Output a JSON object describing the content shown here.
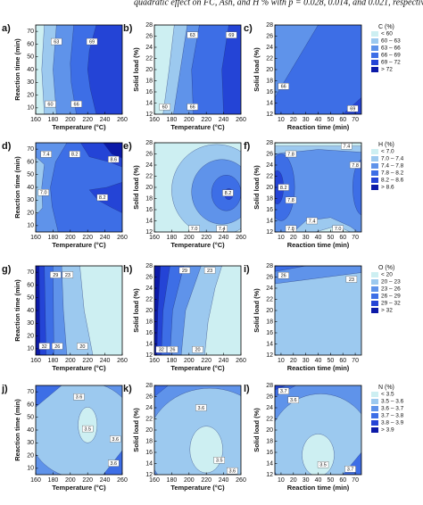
{
  "caption": "quadratic effect on FC, Ash, and H % with p = 0.028, 0.014, and 0.021, respectively.",
  "chart_data": [
    {
      "type": "contour",
      "panel": "a)",
      "xlabel": "Temperature (°C)",
      "ylabel": "Reaction time (min)",
      "xlim": [
        160,
        260
      ],
      "xticks": [
        160,
        180,
        200,
        220,
        240,
        260
      ],
      "ylim": [
        5,
        75
      ],
      "yticks": [
        10,
        20,
        30,
        40,
        50,
        60,
        70
      ],
      "contour_labels": [
        "63",
        "69",
        "60",
        "66"
      ]
    },
    {
      "type": "contour",
      "panel": "b)",
      "xlabel": "Temperature (°C)",
      "ylabel": "Solid load (%)",
      "xlim": [
        160,
        260
      ],
      "xticks": [
        160,
        180,
        200,
        220,
        240,
        260
      ],
      "ylim": [
        12,
        28
      ],
      "yticks": [
        12,
        14,
        16,
        18,
        20,
        22,
        24,
        26,
        28
      ],
      "contour_labels": [
        "63",
        "69",
        "60",
        "66"
      ]
    },
    {
      "type": "contour",
      "panel": "c)",
      "xlabel": "Reaction time (min)",
      "ylabel": "Solid load (%)",
      "xlim": [
        5,
        75
      ],
      "xticks": [
        10,
        20,
        30,
        40,
        50,
        60,
        70
      ],
      "ylim": [
        12,
        28
      ],
      "yticks": [
        12,
        14,
        16,
        18,
        20,
        22,
        24,
        26,
        28
      ],
      "contour_labels": [
        "66",
        "69"
      ],
      "legend": {
        "title": "C (%)",
        "entries": [
          "< 60",
          "60 – 63",
          "63 – 66",
          "66 – 69",
          "69 – 72",
          "> 72"
        ],
        "colors": [
          "#cdeff2",
          "#9cc9ef",
          "#5f93ea",
          "#3d6ee6",
          "#2444d6",
          "#0c1aa8"
        ]
      }
    },
    {
      "type": "contour",
      "panel": "d)",
      "xlabel": "Temperature (°C)",
      "ylabel": "Reaction time (min)",
      "xlim": [
        160,
        260
      ],
      "xticks": [
        160,
        180,
        200,
        220,
        240,
        260
      ],
      "ylim": [
        5,
        75
      ],
      "yticks": [
        10,
        20,
        30,
        40,
        50,
        60,
        70
      ],
      "contour_labels": [
        "7.4",
        "8.2",
        "8.6",
        "7.0",
        "8.2"
      ]
    },
    {
      "type": "contour",
      "panel": "e)",
      "xlabel": "Temperature (°C)",
      "ylabel": "Solid load (%)",
      "xlim": [
        160,
        260
      ],
      "xticks": [
        160,
        180,
        200,
        220,
        240,
        260
      ],
      "ylim": [
        12,
        28
      ],
      "yticks": [
        12,
        14,
        16,
        18,
        20,
        22,
        24,
        26,
        28
      ],
      "contour_labels": [
        "8.2",
        "7.0",
        "7.4"
      ]
    },
    {
      "type": "contour",
      "panel": "f)",
      "xlabel": "Reaction time (min)",
      "ylabel": "Solid load (%)",
      "xlim": [
        5,
        75
      ],
      "xticks": [
        10,
        20,
        30,
        40,
        50,
        60,
        70
      ],
      "ylim": [
        12,
        28
      ],
      "yticks": [
        12,
        14,
        16,
        18,
        20,
        22,
        24,
        26,
        28
      ],
      "contour_labels": [
        "7.4",
        "7.8",
        "7.8",
        "8.2",
        "7.8",
        "7.4",
        "7.8",
        "7.0"
      ],
      "legend": {
        "title": "H (%)",
        "entries": [
          "< 7.0",
          "7.0 – 7.4",
          "7.4 – 7.8",
          "7.8 – 8.2",
          "8.2 – 8.6",
          "> 8.6"
        ],
        "colors": [
          "#cdeff2",
          "#9cc9ef",
          "#5f93ea",
          "#3d6ee6",
          "#2444d6",
          "#0c1aa8"
        ]
      }
    },
    {
      "type": "contour",
      "panel": "g)",
      "xlabel": "Temperature (°C)",
      "ylabel": "Reaction time (min)",
      "xlim": [
        160,
        260
      ],
      "xticks": [
        160,
        180,
        200,
        220,
        240,
        260
      ],
      "ylim": [
        5,
        75
      ],
      "yticks": [
        10,
        20,
        30,
        40,
        50,
        60,
        70
      ],
      "contour_labels": [
        "29",
        "23",
        "32",
        "26",
        "20"
      ]
    },
    {
      "type": "contour",
      "panel": "h)",
      "xlabel": "Temperature (°C)",
      "ylabel": "Solid load (%)",
      "xlim": [
        160,
        260
      ],
      "xticks": [
        160,
        180,
        200,
        220,
        240,
        260
      ],
      "ylim": [
        12,
        28
      ],
      "yticks": [
        12,
        14,
        16,
        18,
        20,
        22,
        24,
        26,
        28
      ],
      "contour_labels": [
        "29",
        "23",
        "32",
        "26",
        "20"
      ]
    },
    {
      "type": "contour",
      "panel": "i)",
      "xlabel": "Reaction time (min)",
      "ylabel": "Solid load (%)",
      "xlim": [
        5,
        75
      ],
      "xticks": [
        10,
        20,
        30,
        40,
        50,
        60,
        70
      ],
      "ylim": [
        12,
        28
      ],
      "yticks": [
        12,
        14,
        16,
        18,
        20,
        22,
        24,
        26,
        28
      ],
      "contour_labels": [
        "26",
        "23"
      ],
      "legend": {
        "title": "O (%)",
        "entries": [
          "< 20",
          "20 – 23",
          "23 – 26",
          "26 – 29",
          "29 – 32",
          "> 32"
        ],
        "colors": [
          "#cdeff2",
          "#9cc9ef",
          "#5f93ea",
          "#3d6ee6",
          "#2444d6",
          "#0c1aa8"
        ]
      }
    },
    {
      "type": "contour",
      "panel": "j)",
      "xlabel": "Temperature (°C)",
      "ylabel": "Reaction time (min)",
      "xlim": [
        160,
        260
      ],
      "xticks": [
        160,
        180,
        200,
        220,
        240,
        260
      ],
      "ylim": [
        5,
        75
      ],
      "yticks": [
        10,
        20,
        30,
        40,
        50,
        60,
        70
      ],
      "contour_labels": [
        "3.6",
        "3.5",
        "3.6",
        "3.6"
      ]
    },
    {
      "type": "contour",
      "panel": "k)",
      "xlabel": "Temperature (°C)",
      "ylabel": "Solid load (%)",
      "xlim": [
        160,
        260
      ],
      "xticks": [
        160,
        180,
        200,
        220,
        240,
        260
      ],
      "ylim": [
        12,
        28
      ],
      "yticks": [
        12,
        14,
        16,
        18,
        20,
        22,
        24,
        26,
        28
      ],
      "contour_labels": [
        "3.6",
        "3.5",
        "3.6"
      ]
    },
    {
      "type": "contour",
      "panel": "l)",
      "xlabel": "Reaction time (min)",
      "ylabel": "Solid load (%)",
      "xlim": [
        5,
        75
      ],
      "xticks": [
        10,
        20,
        30,
        40,
        50,
        60,
        70
      ],
      "ylim": [
        12,
        28
      ],
      "yticks": [
        12,
        14,
        16,
        18,
        20,
        22,
        24,
        26,
        28
      ],
      "contour_labels": [
        "3.7",
        "3.6",
        "3.5",
        "3.7"
      ],
      "legend": {
        "title": "N (%)",
        "entries": [
          "< 3.5",
          "3.5 – 3.6",
          "3.6 – 3.7",
          "3.7 – 3.8",
          "3.8 – 3.9",
          "> 3.9"
        ],
        "colors": [
          "#cdeff2",
          "#9cc9ef",
          "#5f93ea",
          "#3d6ee6",
          "#2444d6",
          "#0c1aa8"
        ]
      }
    }
  ]
}
